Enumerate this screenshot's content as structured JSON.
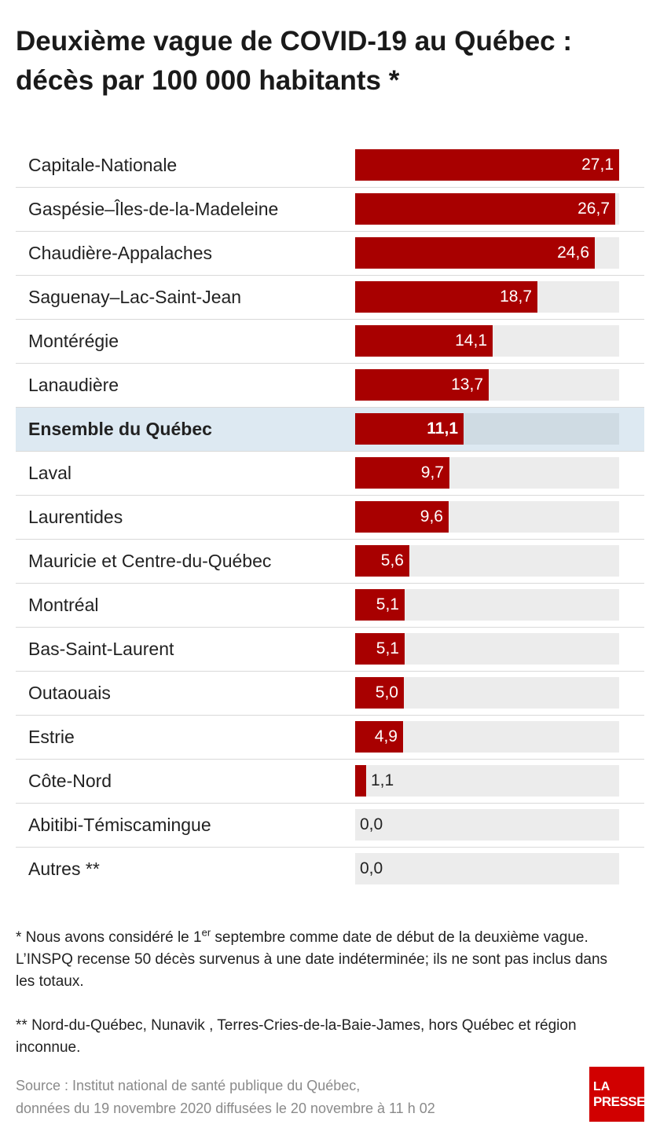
{
  "header": {
    "title_line1": "Deuxième vague de COVID-19 au Québec :",
    "title_line2": "décès par 100 000 habitants *"
  },
  "colors": {
    "bar": "#a80000",
    "track": "#ececec",
    "highlight_row": "#dde9f2",
    "highlight_track": "#cfdbe3",
    "logo": "#d10000"
  },
  "chart_data": {
    "type": "bar",
    "orientation": "horizontal",
    "title": "Deuxième vague de COVID-19 au Québec : décès par 100 000 habitants *",
    "xlim": [
      0,
      27.1
    ],
    "highlight_category": "Ensemble du Québec",
    "categories": [
      "Capitale-Nationale",
      "Gaspésie–Îles-de-la-Madeleine",
      "Chaudière-Appalaches",
      "Saguenay–Lac-Saint-Jean",
      "Montérégie",
      "Lanaudière",
      "Ensemble du Québec",
      "Laval",
      "Laurentides",
      "Mauricie et Centre-du-Québec",
      "Montréal",
      "Bas-Saint-Laurent",
      "Outaouais",
      "Estrie",
      "Côte-Nord",
      "Abitibi-Témiscamingue",
      "Autres **"
    ],
    "values": [
      27.1,
      26.7,
      24.6,
      18.7,
      14.1,
      13.7,
      11.1,
      9.7,
      9.6,
      5.6,
      5.1,
      5.1,
      5.0,
      4.9,
      1.1,
      0.0,
      0.0
    ],
    "value_labels": [
      "27,1",
      "26,7",
      "24,6",
      "18,7",
      "14,1",
      "13,7",
      "11,1",
      "9,7",
      "9,6",
      "5,6",
      "5,1",
      "5,1",
      "5,0",
      "4,9",
      "1,1",
      "0,0",
      "0,0"
    ]
  },
  "notes": {
    "note1_start": "* Nous avons considéré le 1",
    "note1_sup": "er",
    "note1_end": " septembre comme date de début de la deuxième vague. L’INSPQ recense 50 décès survenus à une date indéterminée; ils ne sont pas inclus dans les totaux.",
    "note2": "** Nord-du-Québec, Nunavik , Terres-Cries-de-la-Baie-James, hors Québec et région inconnue."
  },
  "source": {
    "line1": "Source : Institut national de santé publique du Québec,",
    "line2": "données du 19 novembre 2020 diffusées le 20 novembre à 11 h 02"
  },
  "logo": {
    "line1": "LA",
    "line2": "PRESSE"
  }
}
